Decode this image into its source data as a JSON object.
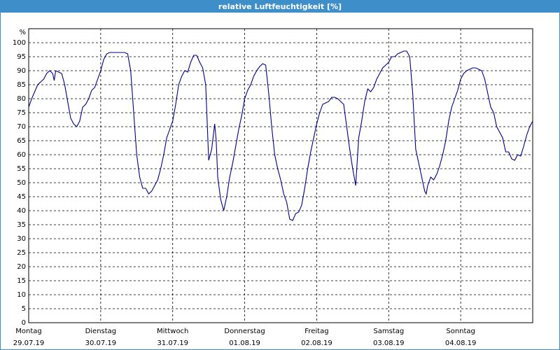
{
  "chart_data": {
    "type": "line",
    "title": "relative Luftfeuchtigkeit [%]",
    "ylabel": "%",
    "x": [
      0,
      1,
      3,
      5,
      6,
      7,
      8,
      8.5,
      9,
      10,
      11,
      12,
      13,
      14,
      15,
      16,
      17,
      18,
      19,
      20,
      21,
      22,
      23,
      24,
      25,
      26,
      27,
      29,
      31,
      32,
      33,
      34,
      35,
      36,
      37,
      38,
      39,
      40,
      41,
      42,
      43,
      44,
      45,
      46,
      47,
      48,
      49,
      50,
      51,
      52,
      53,
      54,
      55,
      56,
      57,
      58,
      59,
      60,
      61,
      62,
      62.5,
      63,
      64,
      65,
      66,
      67,
      68,
      69,
      70,
      71,
      72,
      73,
      74,
      75,
      76,
      77,
      78,
      79,
      80,
      81,
      82,
      83,
      84,
      85,
      86,
      87,
      88,
      89,
      90,
      91,
      92,
      93,
      94,
      95,
      96,
      97,
      98,
      99,
      100,
      101,
      102,
      103,
      104,
      105,
      106,
      107,
      108,
      109,
      110,
      111,
      112,
      113,
      114,
      115,
      116,
      117,
      118,
      119,
      120,
      121,
      122,
      123,
      124,
      125,
      126,
      127,
      128,
      129,
      130,
      131,
      132,
      132.5,
      133,
      134,
      135,
      136,
      137,
      138,
      139,
      140,
      141,
      142,
      143,
      144,
      145,
      146,
      147,
      148,
      149,
      150,
      151,
      152,
      153,
      154,
      155,
      156,
      157,
      158,
      159,
      160,
      161,
      162,
      163,
      164,
      165,
      166,
      167,
      168
    ],
    "series": [
      {
        "name": "relative Luftfeuchtigkeit",
        "color": "#00008b",
        "values": [
          77,
          80,
          85,
          87,
          89,
          90,
          89,
          86.5,
          90,
          89.5,
          89,
          85,
          79,
          73,
          71,
          70,
          72,
          77,
          78,
          80,
          83,
          84,
          87,
          90,
          94,
          96,
          96.5,
          96.5,
          96.5,
          96.5,
          96,
          90,
          75,
          60,
          52,
          48,
          48,
          46,
          47,
          49,
          51,
          55,
          60,
          66,
          69,
          72,
          78,
          85,
          88,
          90,
          89.5,
          93,
          95.5,
          95.5,
          93,
          91,
          85,
          58,
          62,
          71,
          65,
          52,
          44,
          40,
          45,
          52,
          57,
          63,
          69,
          74,
          80,
          83,
          85,
          88,
          90,
          91.5,
          92.5,
          92,
          82,
          70,
          60,
          55,
          51,
          46,
          43,
          37,
          36.5,
          39,
          39.5,
          42,
          48,
          55,
          61,
          66,
          71,
          75,
          78,
          78.5,
          79,
          80.5,
          80.5,
          80,
          79,
          78,
          70,
          62,
          55,
          49,
          66,
          72,
          79,
          83.5,
          82.5,
          84,
          87,
          89,
          91,
          92,
          93,
          95,
          95,
          96,
          96.5,
          97,
          97,
          95,
          82,
          62,
          57,
          52,
          47,
          46,
          49,
          52,
          51,
          53,
          56,
          60,
          65,
          72,
          77,
          80,
          83,
          87,
          89,
          90,
          90.5,
          91,
          91,
          90.5,
          90,
          87,
          82,
          77,
          75,
          70,
          68,
          66,
          61,
          61,
          58.5,
          58,
          60,
          59.5,
          63,
          67,
          70,
          72
        ]
      }
    ],
    "xlim": [
      0,
      168
    ],
    "ylim": [
      0,
      105
    ],
    "xticks": [
      {
        "value": 0,
        "label": [
          "Montag",
          "29.07.19"
        ]
      },
      {
        "value": 24,
        "label": [
          "Dienstag",
          "30.07.19"
        ]
      },
      {
        "value": 48,
        "label": [
          "Mittwoch",
          "31.07.19"
        ]
      },
      {
        "value": 72,
        "label": [
          "Donnerstag",
          "01.08.19"
        ]
      },
      {
        "value": 96,
        "label": [
          "Freitag",
          "02.08.19"
        ]
      },
      {
        "value": 120,
        "label": [
          "Samstag",
          "03.08.19"
        ]
      },
      {
        "value": 144,
        "label": [
          "Sonntag",
          "04.08.19"
        ]
      }
    ],
    "yticks": [
      0,
      5,
      10,
      15,
      20,
      25,
      30,
      35,
      40,
      45,
      50,
      55,
      60,
      65,
      70,
      75,
      80,
      85,
      90,
      95,
      100
    ],
    "grid": true
  }
}
